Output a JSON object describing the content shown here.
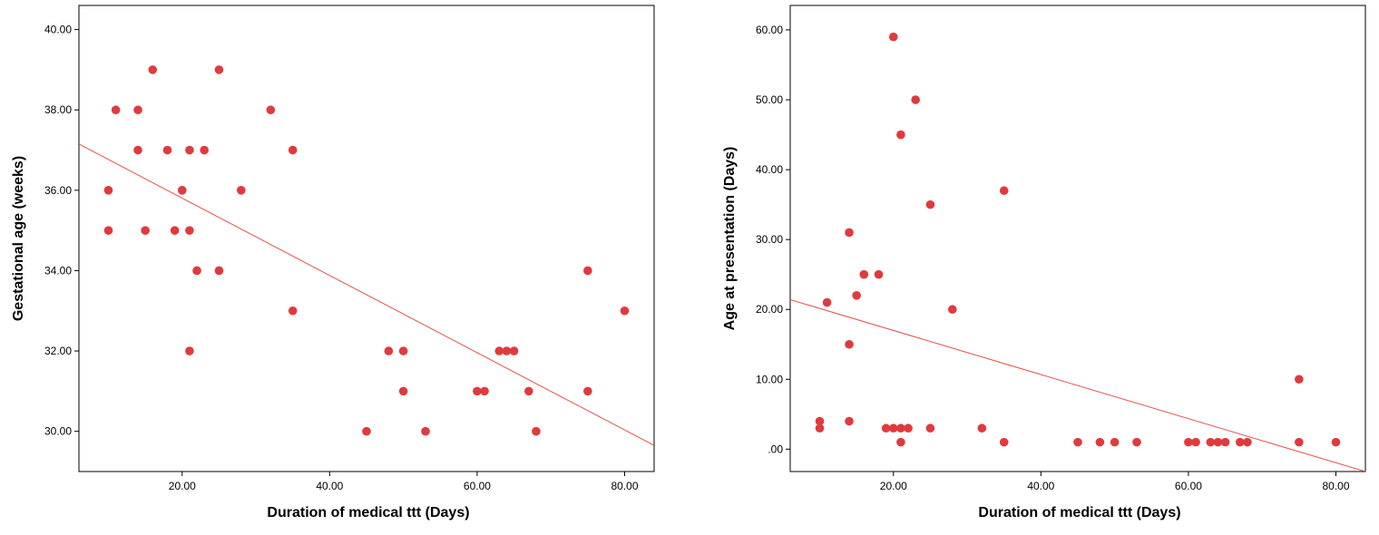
{
  "colors": {
    "point": "#e03a3e",
    "fit_line": "#e2504a",
    "axis": "#000000",
    "background": "#ffffff"
  },
  "chart_data": [
    {
      "type": "scatter",
      "xlabel": "Duration of medical ttt (Days)",
      "ylabel": "Gestational age (weeks)",
      "xlim": [
        6,
        84
      ],
      "ylim": [
        29,
        40.6
      ],
      "x_ticks": [
        20,
        40,
        60,
        80
      ],
      "x_tick_labels": [
        "20.00",
        "40.00",
        "60.00",
        "80.00"
      ],
      "y_ticks": [
        30,
        32,
        34,
        36,
        38,
        40
      ],
      "y_tick_labels": [
        "30.00",
        "32.00",
        "34.00",
        "36.00",
        "38.00",
        "40.00"
      ],
      "points": [
        [
          10,
          36
        ],
        [
          10,
          35
        ],
        [
          11,
          38
        ],
        [
          14,
          38
        ],
        [
          14,
          37
        ],
        [
          15,
          35
        ],
        [
          16,
          39
        ],
        [
          18,
          37
        ],
        [
          19,
          35
        ],
        [
          20,
          36
        ],
        [
          21,
          37
        ],
        [
          21,
          35
        ],
        [
          21,
          32
        ],
        [
          22,
          34
        ],
        [
          23,
          37
        ],
        [
          25,
          39
        ],
        [
          25,
          34
        ],
        [
          28,
          36
        ],
        [
          32,
          38
        ],
        [
          35,
          37
        ],
        [
          35,
          33
        ],
        [
          45,
          30
        ],
        [
          48,
          32
        ],
        [
          50,
          32
        ],
        [
          50,
          31
        ],
        [
          53,
          30
        ],
        [
          60,
          31
        ],
        [
          61,
          31
        ],
        [
          63,
          32
        ],
        [
          64,
          32
        ],
        [
          65,
          32
        ],
        [
          67,
          31
        ],
        [
          68,
          30
        ],
        [
          75,
          34
        ],
        [
          75,
          31
        ],
        [
          80,
          33
        ]
      ],
      "fit_line": {
        "x": [
          6,
          84
        ],
        "y": [
          37.15,
          29.65
        ]
      },
      "grid": false,
      "legend": "none"
    },
    {
      "type": "scatter",
      "xlabel": "Duration of medical ttt (Days)",
      "ylabel": "Age at presentation (Days)",
      "xlim": [
        6,
        84
      ],
      "ylim": [
        -3.2,
        63.5
      ],
      "x_ticks": [
        20,
        40,
        60,
        80
      ],
      "x_tick_labels": [
        "20.00",
        "40.00",
        "60.00",
        "80.00"
      ],
      "y_ticks": [
        0,
        10,
        20,
        30,
        40,
        50,
        60
      ],
      "y_tick_labels": [
        ".00",
        "10.00",
        "20.00",
        "30.00",
        "40.00",
        "50.00",
        "60.00"
      ],
      "points": [
        [
          10,
          4
        ],
        [
          10,
          3
        ],
        [
          11,
          21
        ],
        [
          14,
          31
        ],
        [
          14,
          15
        ],
        [
          14,
          4
        ],
        [
          15,
          22
        ],
        [
          16,
          25
        ],
        [
          18,
          25
        ],
        [
          19,
          3
        ],
        [
          20,
          59
        ],
        [
          20,
          3
        ],
        [
          21,
          45
        ],
        [
          21,
          3
        ],
        [
          21,
          1
        ],
        [
          22,
          3
        ],
        [
          23,
          50
        ],
        [
          25,
          35
        ],
        [
          25,
          3
        ],
        [
          28,
          20
        ],
        [
          32,
          3
        ],
        [
          35,
          37
        ],
        [
          35,
          1
        ],
        [
          45,
          1
        ],
        [
          48,
          1
        ],
        [
          50,
          1
        ],
        [
          53,
          1
        ],
        [
          60,
          1
        ],
        [
          61,
          1
        ],
        [
          63,
          1
        ],
        [
          64,
          1
        ],
        [
          65,
          1
        ],
        [
          67,
          1
        ],
        [
          68,
          1
        ],
        [
          75,
          10
        ],
        [
          75,
          1
        ],
        [
          80,
          1
        ]
      ],
      "fit_line": {
        "x": [
          6,
          84
        ],
        "y": [
          21.4,
          -3.2
        ]
      },
      "grid": false,
      "legend": "none"
    }
  ]
}
